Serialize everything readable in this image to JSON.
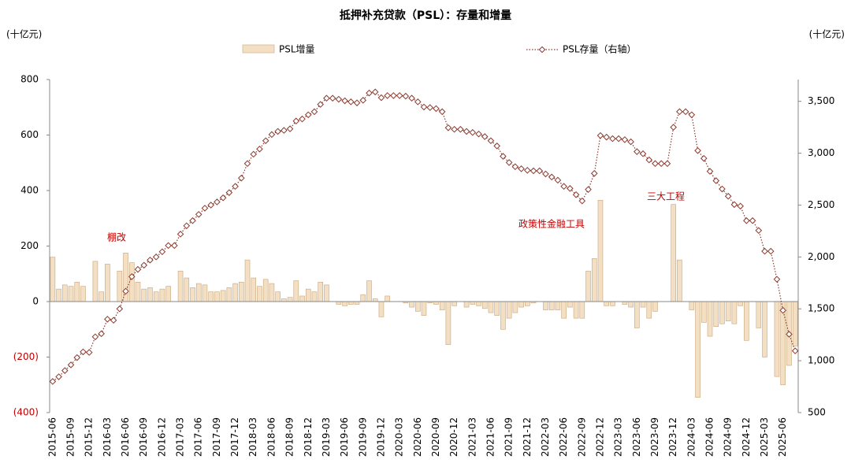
{
  "chart_data": {
    "type": "bar-line",
    "title": "抵押补充贷款（PSL）：存量和增量",
    "y_label": "(十亿元)",
    "y2_label": "(十亿元)",
    "annotations": [
      "棚改",
      "政策性金融工具",
      "三大工程"
    ],
    "annotation_color": "#c00000",
    "negative_tick_color": "#c00000",
    "categories": [
      "2015-06",
      null,
      null,
      "2015-09",
      null,
      null,
      "2015-12",
      null,
      null,
      "2016-03",
      null,
      null,
      "2016-06",
      null,
      null,
      "2016-09",
      null,
      null,
      "2016-12",
      null,
      null,
      "2017-03",
      null,
      null,
      "2017-06",
      null,
      null,
      "2017-09",
      null,
      null,
      "2017-12",
      null,
      null,
      "2018-03",
      null,
      null,
      "2018-06",
      null,
      null,
      "2018-09",
      null,
      null,
      "2018-12",
      null,
      null,
      "2019-03",
      null,
      null,
      "2019-06",
      null,
      null,
      "2019-09",
      null,
      null,
      "2019-12",
      null,
      null,
      "2020-03",
      null,
      null,
      "2020-06",
      null,
      null,
      "2020-09",
      null,
      null,
      "2020-12",
      null,
      null,
      "2021-03",
      null,
      null,
      "2021-06",
      null,
      null,
      "2021-09",
      null,
      null,
      "2021-12",
      null,
      null,
      "2022-03",
      null,
      null,
      "2022-06",
      null,
      null,
      "2022-09",
      null,
      null,
      "2022-12",
      null,
      null,
      "2023-03",
      null,
      null,
      "2023-06",
      null,
      null,
      "2023-09",
      null,
      null,
      "2023-12",
      null,
      null,
      "2024-03",
      null,
      null,
      "2024-06",
      null,
      null,
      "2024-09",
      null,
      null,
      "2024-12",
      null,
      null,
      "2025-03",
      null,
      null,
      "2025-06",
      null,
      null
    ],
    "series": [
      {
        "name": "PSL增量",
        "color": "#f2dfc4",
        "edge_color": "#c8a67c",
        "values": [
          160,
          45,
          60,
          55,
          70,
          55,
          0,
          145,
          35,
          135,
          0,
          110,
          175,
          140,
          70,
          45,
          50,
          35,
          45,
          55,
          0,
          110,
          85,
          50,
          65,
          60,
          35,
          35,
          40,
          50,
          65,
          70,
          150,
          85,
          55,
          80,
          65,
          35,
          10,
          15,
          75,
          20,
          45,
          35,
          70,
          60,
          0,
          -10,
          -15,
          -10,
          -10,
          25,
          75,
          10,
          -55,
          20,
          0,
          0,
          -5,
          -20,
          -35,
          -50,
          -5,
          -10,
          -30,
          -155,
          -15,
          0,
          -20,
          -10,
          -15,
          -25,
          -40,
          -50,
          -100,
          -60,
          -40,
          -20,
          -15,
          -5,
          0,
          -30,
          -30,
          -30,
          -60,
          -20,
          -60,
          -60,
          110,
          155,
          365,
          -15,
          -15,
          0,
          -10,
          -20,
          -95,
          -20,
          -60,
          -35,
          0,
          0,
          350,
          150,
          0,
          -30,
          -345,
          -75,
          -125,
          -90,
          -80,
          -70,
          -80,
          -15,
          -140,
          0,
          -95,
          -200,
          0,
          -270,
          -300,
          -230,
          -160
        ]
      },
      {
        "name": "PSL存量（右轴）",
        "color": "#8b3a2f",
        "axis": "y2",
        "values": [
          800,
          845,
          905,
          960,
          1030,
          1085,
          1080,
          1230,
          1260,
          1400,
          1390,
          1500,
          1670,
          1810,
          1880,
          1920,
          1970,
          2000,
          2050,
          2110,
          2110,
          2220,
          2300,
          2350,
          2410,
          2470,
          2500,
          2530,
          2570,
          2620,
          2680,
          2760,
          2900,
          2990,
          3040,
          3120,
          3180,
          3210,
          3220,
          3235,
          3310,
          3330,
          3370,
          3400,
          3470,
          3530,
          3530,
          3520,
          3505,
          3495,
          3485,
          3510,
          3580,
          3590,
          3535,
          3555,
          3555,
          3555,
          3550,
          3530,
          3495,
          3445,
          3440,
          3430,
          3400,
          3245,
          3230,
          3230,
          3210,
          3200,
          3185,
          3160,
          3120,
          3070,
          2970,
          2910,
          2870,
          2850,
          2835,
          2830,
          2830,
          2800,
          2770,
          2740,
          2680,
          2660,
          2600,
          2540,
          2650,
          2805,
          3170,
          3155,
          3140,
          3140,
          3130,
          3110,
          3015,
          2995,
          2935,
          2900,
          2900,
          2900,
          3250,
          3400,
          3400,
          3370,
          3025,
          2950,
          2825,
          2735,
          2655,
          2585,
          2505,
          2490,
          2350,
          2350,
          2255,
          2055,
          2055,
          1785,
          1485,
          1255,
          1095
        ]
      }
    ],
    "ylim": [
      -400,
      800
    ],
    "yticks": [
      800,
      600,
      400,
      200,
      0,
      {
        "value": -200,
        "label": "(200)"
      },
      {
        "value": -400,
        "label": "(400)"
      }
    ],
    "y2lim": [
      500,
      3710
    ],
    "y2ticks": [
      {
        "value": 3500,
        "label": "3,500"
      },
      {
        "value": 3000,
        "label": "3,000"
      },
      {
        "value": 2500,
        "label": "2,500"
      },
      {
        "value": 2000,
        "label": "2,000"
      },
      {
        "value": 1500,
        "label": "1,500"
      },
      {
        "value": 1000,
        "label": "1,000"
      },
      500
    ],
    "grid": false
  }
}
